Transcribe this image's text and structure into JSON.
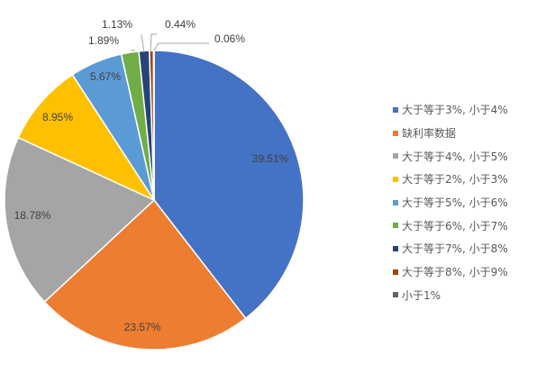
{
  "chart_data": {
    "type": "pie",
    "start_angle_deg": 0,
    "direction": "clockwise",
    "slices": [
      {
        "name": "大于等于3%, 小于4%",
        "value": 39.51,
        "label": "39.51%",
        "color": "#4472C4"
      },
      {
        "name": "缺利率数据",
        "value": 23.57,
        "label": "23.57%",
        "color": "#ED7D31"
      },
      {
        "name": "大于等于4%, 小于5%",
        "value": 18.78,
        "label": "18.78%",
        "color": "#A5A5A5"
      },
      {
        "name": "大于等于2%, 小于3%",
        "value": 8.95,
        "label": "8.95%",
        "color": "#FFC000"
      },
      {
        "name": "大于等于5%, 小于6%",
        "value": 5.67,
        "label": "5.67%",
        "color": "#5B9BD5"
      },
      {
        "name": "大于等于6%, 小于7%",
        "value": 1.89,
        "label": "1.89%",
        "color": "#70AD47"
      },
      {
        "name": "大于等于7%, 小于8%",
        "value": 1.13,
        "label": "1.13%",
        "color": "#264478"
      },
      {
        "name": "大于等于8%, 小于9%",
        "value": 0.44,
        "label": "0.44%",
        "color": "#9E480E"
      },
      {
        "name": "小于1%",
        "value": 0.06,
        "label": "0.06%",
        "color": "#636363"
      }
    ],
    "legend": {
      "position": "right",
      "items": [
        "大于等于3%, 小于4%",
        "缺利率数据",
        "大于等于4%, 小于5%",
        "大于等于2%, 小于3%",
        "大于等于5%, 小于6%",
        "大于等于6%, 小于7%",
        "大于等于7%, 小于8%",
        "大于等于8%, 小于9%",
        "小于1%"
      ]
    }
  }
}
